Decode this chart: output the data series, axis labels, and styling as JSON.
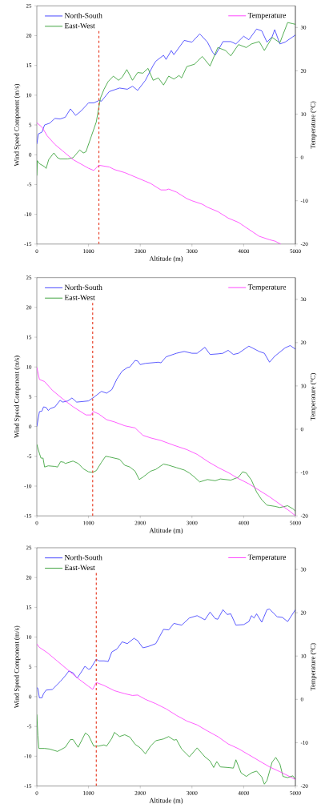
{
  "chart_data": [
    {
      "type": "line",
      "xlabel": "Altitude (m)",
      "ylabel": "Wind Speed Component (m/s)",
      "y2label": "Temperature (°C)",
      "xlim": [
        0,
        5000
      ],
      "ylim": [
        -15,
        25
      ],
      "y2lim": [
        -20,
        35
      ],
      "xticks": [
        0,
        1000,
        2000,
        3000,
        4000,
        5000
      ],
      "yticks": [
        -15,
        -10,
        -5,
        0,
        5,
        10,
        15,
        20,
        25
      ],
      "y2ticks": [
        -20,
        -10,
        0,
        10,
        20,
        30
      ],
      "legend": "top",
      "series": [
        {
          "name": "North-South",
          "color": "#3333ff",
          "x": [
            0,
            30,
            100,
            150,
            250,
            350,
            450,
            550,
            650,
            750,
            850,
            1000,
            1100,
            1200,
            1250,
            1400,
            1600,
            1750,
            1850,
            1950,
            2100,
            2250,
            2300,
            2450,
            2500,
            2600,
            2650,
            2850,
            3000,
            3150,
            3300,
            3400,
            3450,
            3600,
            3750,
            3850,
            4000,
            4100,
            4250,
            4350,
            4450,
            4550,
            4600,
            4700,
            4800,
            4950,
            5000
          ],
          "values": [
            1.8,
            3.5,
            3.8,
            5,
            5.3,
            6.1,
            6,
            6.3,
            7.7,
            6.6,
            7.3,
            8.7,
            8.7,
            9.1,
            9,
            10.6,
            11.2,
            11,
            11.5,
            10.8,
            12.5,
            15,
            15.7,
            16.7,
            16,
            17.5,
            16.8,
            19.2,
            18.9,
            20.3,
            18.9,
            17.2,
            16.7,
            19,
            19,
            18.6,
            19.9,
            19.3,
            21.1,
            20.8,
            18.9,
            19.8,
            21,
            18.6,
            18.9,
            19.8,
            20.1
          ]
        },
        {
          "name": "East-West",
          "color": "#2a9a2a",
          "x": [
            0,
            10,
            50,
            150,
            180,
            230,
            330,
            400,
            450,
            600,
            700,
            830,
            900,
            950,
            1050,
            1150,
            1200,
            1230,
            1300,
            1380,
            1480,
            1580,
            1650,
            1740,
            1850,
            1950,
            2050,
            2150,
            2250,
            2350,
            2450,
            2550,
            2650,
            2750,
            2800,
            2900,
            3050,
            3200,
            3350,
            3500,
            3650,
            3750,
            3900,
            4050,
            4150,
            4300,
            4400,
            4550,
            4700,
            4850,
            4950,
            5000
          ],
          "values": [
            -3.5,
            -1,
            -1.5,
            -2,
            -2.3,
            -0.8,
            0.3,
            -0.5,
            -0.7,
            -0.7,
            -0.5,
            0.8,
            0.3,
            0.5,
            3,
            5.5,
            8,
            9.5,
            11,
            12.3,
            13.2,
            12.5,
            13,
            14.3,
            12.5,
            13.8,
            13.7,
            14.5,
            12.5,
            12.9,
            11.7,
            13.2,
            12.7,
            13.3,
            12.9,
            14.8,
            15.2,
            16.5,
            14.9,
            18,
            17.5,
            16.6,
            18.5,
            18,
            18.6,
            19,
            17.5,
            19.7,
            18.8,
            22.2,
            22,
            21.9
          ]
        },
        {
          "name": "Temperature",
          "color": "#ff33ff",
          "axis": "y2",
          "x": [
            0,
            100,
            200,
            350,
            500,
            600,
            700,
            850,
            1000,
            1100,
            1200,
            1300,
            1400,
            1500,
            1700,
            1800,
            1900,
            2100,
            2200,
            2400,
            2500,
            2550,
            2700,
            2900,
            3000,
            3200,
            3300,
            3500,
            3700,
            3900,
            4000,
            4300,
            4500,
            4600,
            4720
          ],
          "values": [
            8,
            7,
            5,
            3,
            1.5,
            0.5,
            -0.5,
            -1.5,
            -2.5,
            -3,
            -1.8,
            -2,
            -2.2,
            -2.8,
            -3.5,
            -4,
            -4.5,
            -5.5,
            -6,
            -7.5,
            -7.5,
            -7.3,
            -8,
            -9.5,
            -10,
            -10.8,
            -11.5,
            -12.5,
            -14,
            -15,
            -15.8,
            -18.2,
            -19,
            -19.3,
            -20
          ]
        }
      ],
      "ref_lines": [
        {
          "axis": "x",
          "value": 1200,
          "color": "#e8412a",
          "line_style": "dashed"
        }
      ]
    },
    {
      "type": "line",
      "xlabel": "Altitude (m)",
      "ylabel": "Wind Speed Component (m/s)",
      "y2label": "Temperature (°C)",
      "xlim": [
        0,
        5000
      ],
      "ylim": [
        -15,
        25
      ],
      "y2lim": [
        -20,
        35
      ],
      "xticks": [
        0,
        1000,
        2000,
        3000,
        4000,
        5000
      ],
      "yticks": [
        -15,
        -10,
        -5,
        0,
        5,
        10,
        15,
        20,
        25
      ],
      "y2ticks": [
        -20,
        -10,
        0,
        10,
        20,
        30
      ],
      "legend": "top",
      "series": [
        {
          "name": "North-South",
          "color": "#3333ff",
          "x": [
            0,
            50,
            100,
            130,
            180,
            220,
            260,
            350,
            450,
            500,
            600,
            680,
            770,
            1000,
            1100,
            1250,
            1350,
            1450,
            1550,
            1650,
            1750,
            1800,
            1900,
            1950,
            2000,
            2100,
            2350,
            2400,
            2500,
            2700,
            2850,
            3000,
            3100,
            3250,
            3350,
            3500,
            3600,
            3700,
            3800,
            3900,
            4100,
            4300,
            4400,
            4500,
            4600,
            4800,
            4900,
            5000
          ],
          "values": [
            0,
            2.5,
            2.6,
            3.3,
            3.2,
            2.7,
            3,
            3.3,
            4.4,
            4.1,
            4.3,
            4.8,
            4.1,
            4.3,
            4.9,
            5.9,
            5.6,
            6.2,
            8,
            9.3,
            9.9,
            10,
            11.1,
            11,
            10.4,
            10.6,
            10.8,
            10.7,
            11.7,
            12.3,
            12.6,
            12.3,
            12.3,
            13.3,
            12.1,
            12.2,
            12.3,
            12.8,
            12.1,
            12.3,
            13.5,
            12.6,
            12.3,
            10.8,
            11.8,
            13.2,
            13.6,
            13
          ]
        },
        {
          "name": "East-West",
          "color": "#2a9a2a",
          "x": [
            0,
            50,
            80,
            120,
            150,
            220,
            350,
            400,
            460,
            520,
            550,
            700,
            800,
            900,
            1000,
            1080,
            1150,
            1250,
            1330,
            1400,
            1600,
            1700,
            1800,
            1900,
            1980,
            2050,
            2200,
            2300,
            2450,
            2550,
            2700,
            2850,
            2950,
            3050,
            3150,
            3300,
            3450,
            3550,
            3750,
            3900,
            3980,
            4050,
            4150,
            4250,
            4350,
            4450,
            4600,
            4700,
            4850,
            4950,
            5000
          ],
          "values": [
            -3,
            -4.5,
            -5.3,
            -5.3,
            -6.8,
            -6.6,
            -6.7,
            -6.8,
            -5.9,
            -6,
            -6.2,
            -5.8,
            -6.2,
            -7.1,
            -7.6,
            -7.7,
            -7.4,
            -6,
            -5,
            -5.1,
            -5.5,
            -6.5,
            -6.8,
            -7.5,
            -8.9,
            -8.5,
            -7.5,
            -7.2,
            -6.3,
            -6.5,
            -6.9,
            -7.3,
            -7.8,
            -8.5,
            -9.3,
            -8.9,
            -9.1,
            -8.8,
            -9,
            -8.5,
            -7.6,
            -7.8,
            -9,
            -11,
            -12.3,
            -13.2,
            -13.4,
            -13.6,
            -13.3,
            -13.8,
            -14.2
          ]
        },
        {
          "name": "Temperature",
          "color": "#ff33ff",
          "axis": "y2",
          "x": [
            0,
            50,
            150,
            300,
            500,
            700,
            950,
            1050,
            1090,
            1200,
            1350,
            1500,
            1700,
            1900,
            2050,
            2200,
            2400,
            2650,
            2900,
            3100,
            3300,
            3500,
            3700,
            3900,
            4100,
            4300,
            4500,
            4700,
            4900,
            5000
          ],
          "values": [
            14.3,
            11.5,
            11,
            9,
            7,
            5.2,
            3.3,
            3.3,
            4.1,
            3.5,
            2.2,
            1.7,
            0.8,
            0.3,
            -1.4,
            -2,
            -2.6,
            -3.7,
            -4.7,
            -5.8,
            -7.4,
            -8.8,
            -10,
            -11.4,
            -12.6,
            -14.1,
            -15.6,
            -17.3,
            -19,
            -20
          ]
        }
      ],
      "ref_lines": [
        {
          "axis": "x",
          "value": 1080,
          "color": "#e8412a",
          "line_style": "dashed"
        }
      ]
    },
    {
      "type": "line",
      "xlabel": "Altitude (m)",
      "ylabel": "Wind Speed Component (m/s)",
      "y2label": "Temperature (°C)",
      "xlim": [
        0,
        5000
      ],
      "ylim": [
        -15,
        25
      ],
      "y2lim": [
        -20,
        35
      ],
      "xticks": [
        0,
        1000,
        2000,
        3000,
        4000,
        5000
      ],
      "yticks": [
        -15,
        -10,
        -5,
        0,
        5,
        10,
        15,
        20,
        25
      ],
      "y2ticks": [
        -20,
        -10,
        0,
        10,
        20,
        30
      ],
      "legend": "top",
      "series": [
        {
          "name": "North-South",
          "color": "#3333ff",
          "x": [
            0,
            20,
            50,
            100,
            130,
            180,
            300,
            450,
            550,
            620,
            700,
            780,
            850,
            930,
            1000,
            1040,
            1150,
            1200,
            1300,
            1380,
            1450,
            1550,
            1650,
            1750,
            1880,
            1950,
            2050,
            2150,
            2300,
            2450,
            2550,
            2650,
            2800,
            2950,
            3100,
            3250,
            3350,
            3450,
            3500,
            3600,
            3680,
            3750,
            3850,
            4000,
            4100,
            4150,
            4200,
            4250,
            4350,
            4450,
            4500,
            4650,
            4750,
            4850,
            5000
          ],
          "values": [
            1.5,
            1.4,
            -0.2,
            -0.2,
            0.5,
            1.1,
            1.2,
            2.5,
            3.5,
            4.3,
            4,
            3.1,
            4,
            5.1,
            4.6,
            4.7,
            6.3,
            6,
            6,
            5.9,
            7.5,
            8,
            9.2,
            8.9,
            9.8,
            9.4,
            8.2,
            8.4,
            8.9,
            11.3,
            11.2,
            12.3,
            12,
            13.2,
            13.6,
            12.9,
            14.2,
            13.1,
            13,
            14.6,
            13.8,
            13.9,
            12,
            12.1,
            12.6,
            13.6,
            13.2,
            13.9,
            12.5,
            14.6,
            14.7,
            13.4,
            13.3,
            12.6,
            14.6
          ]
        },
        {
          "name": "East-West",
          "color": "#2a9a2a",
          "x": [
            0,
            20,
            40,
            150,
            250,
            400,
            550,
            650,
            700,
            800,
            940,
            1000,
            1100,
            1200,
            1300,
            1350,
            1450,
            1500,
            1600,
            1700,
            1800,
            1900,
            2000,
            2100,
            2200,
            2300,
            2450,
            2550,
            2650,
            2700,
            2800,
            2950,
            3100,
            3250,
            3350,
            3420,
            3480,
            3550,
            3700,
            3800,
            3850,
            3950,
            4050,
            4150,
            4250,
            4350,
            4400,
            4450,
            4550,
            4620,
            4700,
            4760,
            4850,
            4950,
            5000
          ],
          "values": [
            -3,
            -6.5,
            -8.7,
            -8.7,
            -8.8,
            -9.2,
            -8.5,
            -7.2,
            -7.2,
            -8.5,
            -6.1,
            -6.5,
            -8.3,
            -8.3,
            -8.1,
            -8.3,
            -7,
            -6,
            -6.7,
            -6.4,
            -6.8,
            -8,
            -8.6,
            -9.6,
            -8.3,
            -7.4,
            -7.1,
            -6.7,
            -7.3,
            -7.2,
            -8.8,
            -10.1,
            -8.6,
            -10.1,
            -10.8,
            -11.9,
            -10.9,
            -11.8,
            -11.9,
            -12,
            -10.6,
            -12.8,
            -13.4,
            -12.8,
            -12.5,
            -13.5,
            -14.7,
            -14.1,
            -11,
            -10.2,
            -11.3,
            -13.4,
            -13.6,
            -13.3,
            -13.9
          ]
        },
        {
          "name": "Temperature",
          "color": "#ff33ff",
          "axis": "y2",
          "x": [
            0,
            50,
            200,
            400,
            600,
            800,
            1000,
            1080,
            1150,
            1300,
            1500,
            1700,
            1850,
            1950,
            2100,
            2300,
            2500,
            2700,
            2900,
            3100,
            3300,
            3500,
            3700,
            3900,
            4100,
            4300,
            4500,
            4700,
            4900,
            5000
          ],
          "values": [
            12.8,
            12,
            10.8,
            8.8,
            6.8,
            4.8,
            3,
            2.3,
            3.9,
            3.2,
            2,
            1.3,
            0.9,
            1,
            0,
            -1,
            -2.2,
            -3.7,
            -5,
            -5.9,
            -7.3,
            -8.6,
            -10.3,
            -11.4,
            -12.8,
            -14.2,
            -15.6,
            -16.7,
            -17.9,
            -18.5
          ]
        }
      ],
      "ref_lines": [
        {
          "axis": "x",
          "value": 1150,
          "color": "#e8412a",
          "line_style": "dashed"
        }
      ]
    }
  ]
}
